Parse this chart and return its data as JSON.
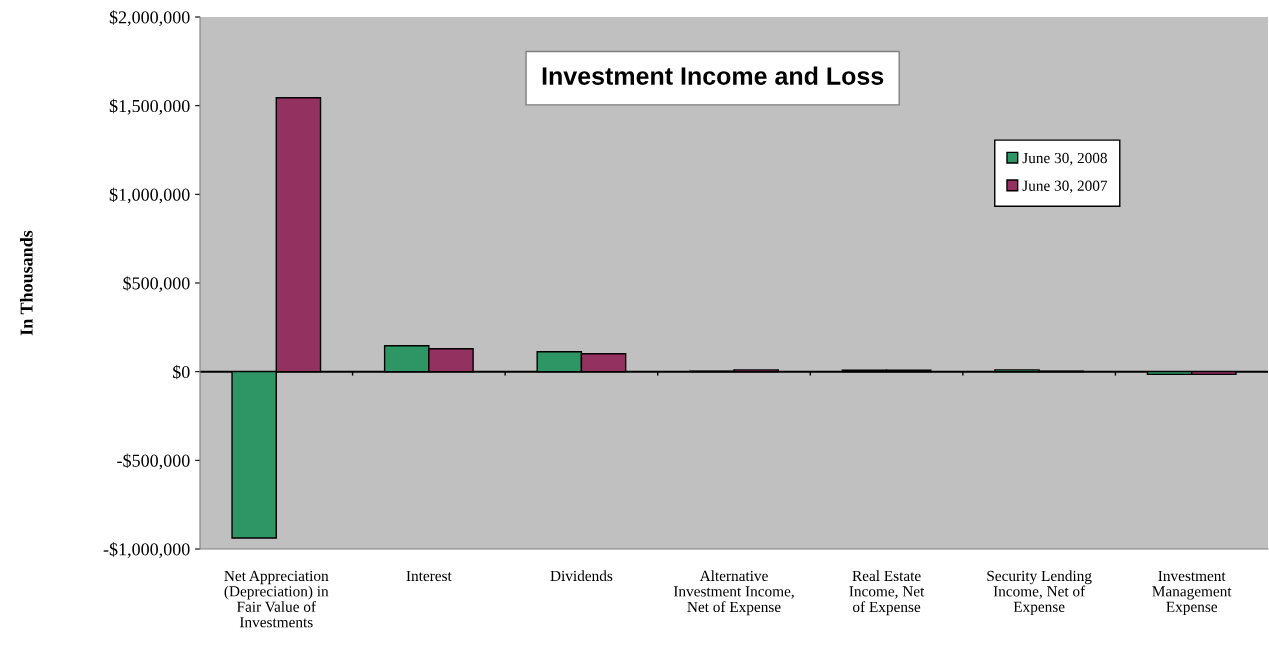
{
  "chart_data": {
    "type": "bar",
    "title": "Investment Income and Loss",
    "ylabel": "In Thousands",
    "categories": [
      "Net Appreciation\n(Depreciation) in\nFair Value of\nInvestments",
      "Interest",
      "Dividends",
      "Alternative\nInvestment Income,\nNet of Expense",
      "Real Estate\nIncome, Net\nof Expense",
      "Security Lending\nIncome, Net of\nExpense",
      "Investment\nManagement\nExpense"
    ],
    "series": [
      {
        "name": "June 30, 2008",
        "color": "#2e9665",
        "values": [
          -938000,
          146000,
          112000,
          3000,
          8000,
          10000,
          -15000
        ]
      },
      {
        "name": "June 30, 2007",
        "color": "#933160",
        "values": [
          1545000,
          129000,
          101000,
          10000,
          8000,
          3000,
          -15000
        ]
      }
    ],
    "ylim": [
      -1000000,
      2000000
    ],
    "yticks": [
      {
        "value": -1000000,
        "label": "-$1,000,000"
      },
      {
        "value": -500000,
        "label": "-$500,000"
      },
      {
        "value": 0,
        "label": "$0"
      },
      {
        "value": 500000,
        "label": "$500,000"
      },
      {
        "value": 1000000,
        "label": "$1,000,000"
      },
      {
        "value": 1500000,
        "label": "$1,500,000"
      },
      {
        "value": 2000000,
        "label": "$2,000,000"
      }
    ],
    "ref_lines": [
      {
        "axis": "y",
        "value": 0,
        "color": "#000000"
      }
    ],
    "grid": false,
    "legend": "right"
  }
}
